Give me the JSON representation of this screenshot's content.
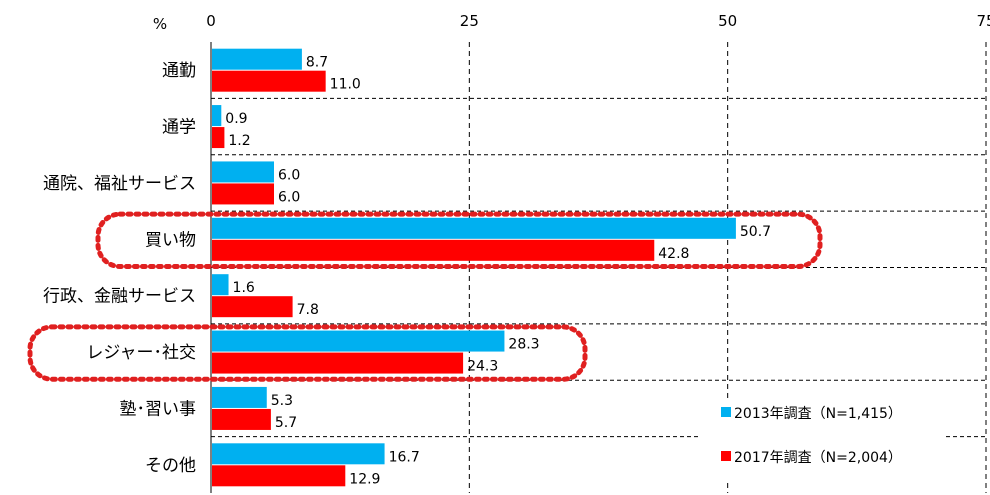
{
  "chart_data": {
    "type": "bar",
    "orientation": "horizontal",
    "unit_label": "%",
    "categories": [
      "通勤",
      "通学",
      "通院、福祉サービス",
      "買い物",
      "行政、金融サービス",
      "レジャー･社交",
      "塾･習い事",
      "その他"
    ],
    "series": [
      {
        "name": "2013年調査（N=1,415）",
        "color": "#00b0f0",
        "values": [
          8.7,
          0.9,
          6.0,
          50.7,
          1.6,
          28.3,
          5.3,
          16.7
        ]
      },
      {
        "name": "2017年調査（N=2,004）",
        "color": "#ff0000",
        "values": [
          11.0,
          1.2,
          6.0,
          42.8,
          7.8,
          24.3,
          5.7,
          12.9
        ]
      }
    ],
    "xlim": [
      0,
      75
    ],
    "xticks": [
      0,
      25,
      50,
      75
    ],
    "grid": true,
    "legend_position": "bottom-right",
    "highlighted_categories": [
      "買い物",
      "レジャー･社交"
    ],
    "highlight_color": "#e02020"
  }
}
